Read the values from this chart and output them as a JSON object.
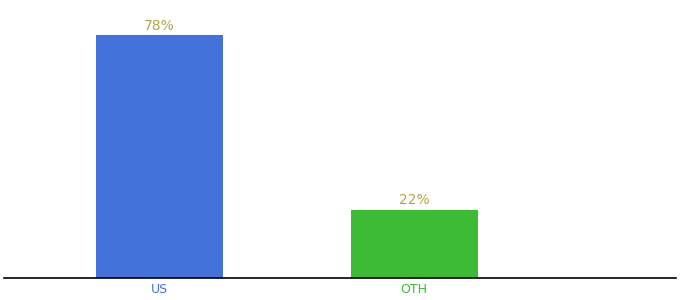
{
  "categories": [
    "US",
    "OTH"
  ],
  "values": [
    78,
    22
  ],
  "bar_colors": [
    "#4472db",
    "#3dbb35"
  ],
  "label_color": "#b5a642",
  "label_fontsize": 10,
  "xlabel_fontsize": 9,
  "background_color": "#ffffff",
  "ylim": [
    0,
    88
  ],
  "bar_width": 0.18,
  "x_positions": [
    0.22,
    0.58
  ],
  "xlim": [
    0.0,
    0.95
  ]
}
